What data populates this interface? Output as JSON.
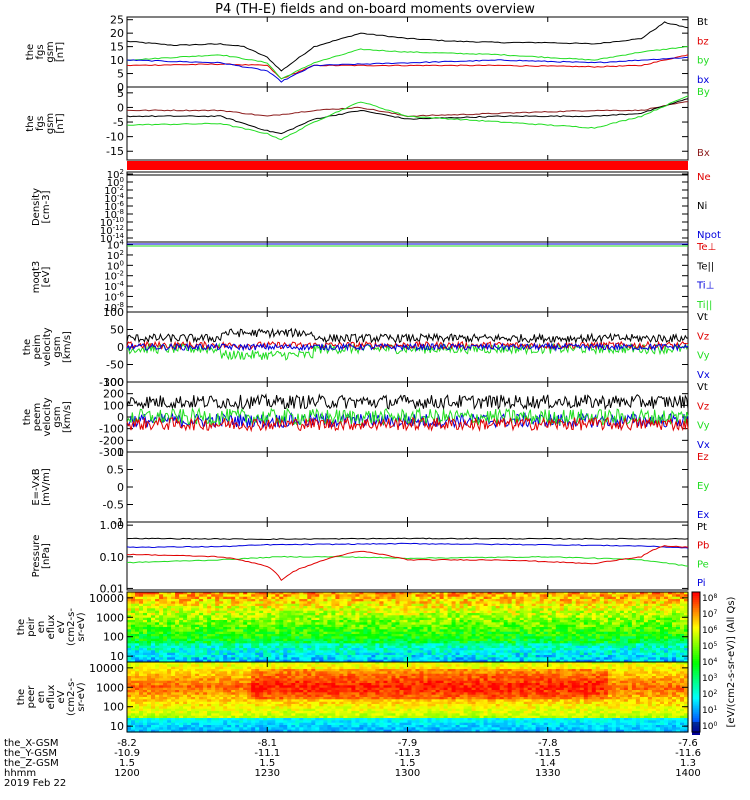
{
  "title": "P4 (TH-E) fields and on-board moments overview",
  "date_label": "2019 Feb 22",
  "colorbar_label": "[eV/(cm2-s-sr-eV)] (All Qs)",
  "time_axis": {
    "row_labels": [
      "the_X-GSM",
      "the_Y-GSM",
      "the_Z-GSM",
      "hhmm"
    ],
    "ticks": [
      {
        "hhmm": "1200",
        "x": "-8.2",
        "y": "-10.9",
        "z": "1.5"
      },
      {
        "hhmm": "1230",
        "x": "-8.1",
        "y": "-11.1",
        "z": "1.5"
      },
      {
        "hhmm": "1300",
        "x": "-7.9",
        "y": "-11.3",
        "z": "1.5"
      },
      {
        "hhmm": "1330",
        "x": "-7.8",
        "y": "-11.5",
        "z": "1.4"
      },
      {
        "hhmm": "1400",
        "x": "-7.6",
        "y": "-11.6",
        "z": "1.3"
      }
    ]
  },
  "colors": {
    "black": "#000000",
    "red": "#e00000",
    "green": "#22dd22",
    "blue": "#0000dd",
    "brown": "#8b1a1a"
  },
  "chart_data": [
    {
      "type": "line",
      "ylabel": [
        "the",
        "fgs",
        "gsm",
        "[nT]"
      ],
      "scale": "linear",
      "yticks": [
        0,
        5,
        10,
        15,
        20,
        25
      ],
      "ylim": [
        0,
        26
      ],
      "legend": [
        {
          "label": "Bt",
          "color": "black"
        },
        {
          "label": "bz",
          "color": "red"
        },
        {
          "label": "by",
          "color": "green"
        },
        {
          "label": "bx",
          "color": "blue"
        }
      ],
      "series": [
        {
          "name": "Bt",
          "color": "black",
          "t": [
            1200,
            1210,
            1220,
            1225,
            1230,
            1233,
            1240,
            1250,
            1300,
            1310,
            1320,
            1330,
            1340,
            1350,
            1355,
            1400
          ],
          "y": [
            17,
            15.5,
            16,
            15,
            11,
            6,
            15,
            20,
            18,
            17,
            16.5,
            16.5,
            16,
            18,
            24,
            22
          ]
        },
        {
          "name": "bz",
          "color": "red",
          "t": [
            1200,
            1220,
            1230,
            1233,
            1240,
            1300,
            1320,
            1340,
            1350,
            1400
          ],
          "y": [
            8,
            8.5,
            8,
            3,
            8,
            8,
            8,
            7.5,
            8,
            12
          ]
        },
        {
          "name": "by",
          "color": "green",
          "t": [
            1200,
            1210,
            1220,
            1230,
            1233,
            1240,
            1250,
            1300,
            1320,
            1340,
            1350,
            1400
          ],
          "y": [
            10,
            11,
            12,
            9,
            3,
            9,
            14,
            13,
            12,
            10,
            13,
            15
          ]
        },
        {
          "name": "bx",
          "color": "blue",
          "t": [
            1200,
            1220,
            1230,
            1233,
            1240,
            1300,
            1320,
            1340,
            1400
          ],
          "y": [
            10,
            9,
            6,
            2,
            8,
            9,
            10,
            9,
            11
          ]
        }
      ]
    },
    {
      "type": "line",
      "ylabel": [
        "the",
        "fgs",
        "gsm",
        "[nT]"
      ],
      "scale": "linear",
      "yticks": [
        5,
        0,
        -5,
        -10,
        -15
      ],
      "ylim": [
        -18,
        7
      ],
      "legend": [
        {
          "label": "By",
          "color": "green"
        },
        {
          "label": "Bx",
          "color": "brown"
        }
      ],
      "series": [
        {
          "name": "Bx",
          "color": "brown",
          "t": [
            1200,
            1220,
            1230,
            1240,
            1250,
            1300,
            1320,
            1340,
            1350,
            1400
          ],
          "y": [
            -1,
            -1,
            -3,
            -1,
            0,
            -3,
            -2,
            -1,
            -1,
            2
          ]
        },
        {
          "name": "Bz",
          "color": "black",
          "t": [
            1200,
            1220,
            1230,
            1233,
            1240,
            1250,
            1300,
            1320,
            1340,
            1350,
            1400
          ],
          "y": [
            -3,
            -3,
            -8,
            -9,
            -4,
            -1,
            -4,
            -3,
            -3,
            -2,
            3
          ]
        },
        {
          "name": "By",
          "color": "green",
          "t": [
            1200,
            1220,
            1230,
            1233,
            1240,
            1250,
            1300,
            1320,
            1340,
            1350,
            1400
          ],
          "y": [
            -6,
            -5.5,
            -9,
            -11,
            -5,
            2,
            -3,
            -5,
            -7,
            -3,
            4
          ]
        }
      ]
    },
    {
      "type": "line",
      "ylabel": [
        "Density",
        "[cm-3]"
      ],
      "scale": "log",
      "yticks": [
        "10^2",
        "10^0",
        "10^-2",
        "10^-4",
        "10^-6",
        "10^-8",
        "10^-10",
        "10^-12",
        "10^-14"
      ],
      "ylim": [
        -15,
        2.5
      ],
      "legend": [
        {
          "label": "Ne",
          "color": "red"
        },
        {
          "label": "Ni",
          "color": "black"
        },
        {
          "label": "Npot",
          "color": "blue"
        }
      ],
      "series": []
    },
    {
      "type": "line",
      "ylabel": [
        "moqt3",
        "[eV]"
      ],
      "scale": "log",
      "yticks": [
        "10^4",
        "10^2",
        "10^0",
        "10^-2",
        "10^-4",
        "10^-6",
        "10^-8"
      ],
      "ylim": [
        -9,
        4.5
      ],
      "legend": [
        {
          "label": "Te⊥",
          "color": "red"
        },
        {
          "label": "Te||",
          "color": "black"
        },
        {
          "label": "Ti⊥",
          "color": "blue"
        },
        {
          "label": "Ti||",
          "color": "green"
        }
      ],
      "series": []
    },
    {
      "type": "line",
      "ylabel": [
        "the",
        "peim",
        "velocity",
        "gsm",
        "[km/s]"
      ],
      "scale": "linear",
      "yticks": [
        100,
        50,
        0,
        -50,
        -100
      ],
      "ylim": [
        -100,
        100
      ],
      "legend": [
        {
          "label": "Vt",
          "color": "black"
        },
        {
          "label": "Vz",
          "color": "red"
        },
        {
          "label": "Vy",
          "color": "green"
        },
        {
          "label": "Vx",
          "color": "blue"
        }
      ],
      "series": [
        {
          "name": "Vy",
          "color": "green",
          "base": -5,
          "amp": 14
        },
        {
          "name": "Vz",
          "color": "red",
          "base": 5,
          "amp": 10
        },
        {
          "name": "Vx",
          "color": "blue",
          "base": 0,
          "amp": 9
        },
        {
          "name": "Vt",
          "color": "black",
          "base": 25,
          "amp": 12
        }
      ]
    },
    {
      "type": "line",
      "ylabel": [
        "the",
        "peem",
        "velocity",
        "gsm",
        "[km/s]"
      ],
      "scale": "linear",
      "yticks": [
        300,
        200,
        100,
        0,
        -100,
        -200,
        -300
      ],
      "ylim": [
        -300,
        300
      ],
      "legend": [
        {
          "label": "Vt",
          "color": "black"
        },
        {
          "label": "Vz",
          "color": "red"
        },
        {
          "label": "Vy",
          "color": "green"
        },
        {
          "label": "Vx",
          "color": "blue"
        }
      ],
      "series": [
        {
          "name": "Vx",
          "color": "blue",
          "base": -30,
          "amp": 60
        },
        {
          "name": "Vy",
          "color": "green",
          "base": 0,
          "amp": 70
        },
        {
          "name": "Vt",
          "color": "black",
          "base": 130,
          "amp": 60
        },
        {
          "name": "Vz",
          "color": "red",
          "base": -60,
          "amp": 55
        }
      ]
    },
    {
      "type": "line",
      "ylabel": [
        "E=-VxB",
        "[mV/m]"
      ],
      "scale": "linear",
      "yticks": [
        1.0,
        0.5,
        0.0,
        -0.5,
        -1.0
      ],
      "ylim": [
        -1,
        1
      ],
      "legend": [
        {
          "label": "Ez",
          "color": "red"
        },
        {
          "label": "Ey",
          "color": "green"
        },
        {
          "label": "Ex",
          "color": "blue"
        }
      ],
      "series": []
    },
    {
      "type": "line",
      "ylabel": [
        "Pressure",
        "[nPa]"
      ],
      "scale": "log",
      "yticks": [
        "1.00",
        "0.10",
        "0.01"
      ],
      "ylim": [
        -2.05,
        0.1
      ],
      "legend": [
        {
          "label": "Pt",
          "color": "black"
        },
        {
          "label": "Pb",
          "color": "red"
        },
        {
          "label": "Pe",
          "color": "green"
        },
        {
          "label": "Pi",
          "color": "blue"
        }
      ],
      "series": [
        {
          "name": "Pt",
          "color": "black",
          "t": [
            1200,
            1230,
            1300,
            1330,
            1400
          ],
          "y": [
            0.38,
            0.36,
            0.38,
            0.37,
            0.37
          ]
        },
        {
          "name": "Pi",
          "color": "blue",
          "t": [
            1200,
            1220,
            1230,
            1300,
            1330,
            1350,
            1400
          ],
          "y": [
            0.2,
            0.21,
            0.24,
            0.26,
            0.24,
            0.22,
            0.19
          ]
        },
        {
          "name": "Pe",
          "color": "green",
          "t": [
            1200,
            1220,
            1233,
            1245,
            1300,
            1330,
            1350,
            1400
          ],
          "y": [
            0.065,
            0.08,
            0.1,
            0.1,
            0.09,
            0.1,
            0.08,
            0.05
          ]
        },
        {
          "name": "Pb",
          "color": "red",
          "t": [
            1200,
            1220,
            1230,
            1233,
            1240,
            1250,
            1300,
            1320,
            1340,
            1350,
            1355,
            1400
          ],
          "y": [
            0.12,
            0.1,
            0.05,
            0.018,
            0.06,
            0.15,
            0.08,
            0.08,
            0.06,
            0.1,
            0.22,
            0.2
          ]
        }
      ]
    },
    {
      "type": "heatmap",
      "ylabel": [
        "the",
        "peir",
        "en",
        "eflux",
        "eV",
        "(cm2-s-",
        "sr-eV)"
      ],
      "scale": "log",
      "yticks": [
        "10000",
        "1000",
        "100",
        "10"
      ],
      "ylim": [
        5,
        20000
      ]
    },
    {
      "type": "heatmap",
      "ylabel": [
        "the",
        "peer",
        "en",
        "eflux",
        "eV",
        "(cm2-s-",
        "sr-eV)"
      ],
      "scale": "log",
      "yticks": [
        "10000",
        "1000",
        "100",
        "10"
      ],
      "ylim": [
        5,
        20000
      ]
    }
  ],
  "colorbar_ticks": [
    "10^8",
    "10^7",
    "10^6",
    "10^5",
    "10^4",
    "10^3",
    "10^2",
    "10^1",
    "10^0"
  ]
}
